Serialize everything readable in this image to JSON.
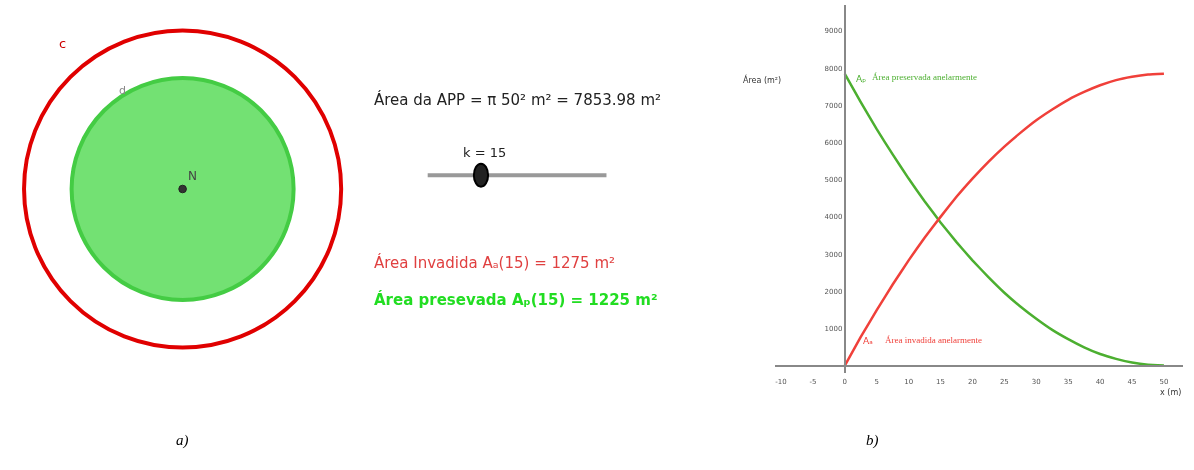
{
  "chart_data": [
    {
      "type": "other",
      "annotations": [
        "c",
        "d",
        "N",
        "Área da APP = π 50² m² = 7853.98 m²",
        "k = 15",
        "Área Invadida Aₐ(15) = 1275 m²",
        "Área presevada Aₚ(15) = 1225 m²",
        "a)"
      ]
    },
    {
      "type": "line",
      "xlabel": "x (m)",
      "ylabel": "Área (m²)",
      "x": [
        0,
        2.5,
        5,
        7.5,
        10,
        12.5,
        15,
        17.5,
        20,
        22.5,
        25,
        27.5,
        30,
        32.5,
        35,
        37.5,
        40,
        42.5,
        45,
        47.5,
        50
      ],
      "series": [
        {
          "name": "Área preservada anelarmente",
          "color": "#4caf30",
          "values": [
            7850,
            7090,
            6360,
            5680,
            5030,
            4420,
            3850,
            3320,
            2830,
            2380,
            1960,
            1590,
            1260,
            960,
            710,
            490,
            310,
            180,
            80,
            20,
            0
          ]
        },
        {
          "name": "Área invadida anelarmente",
          "color": "#f0403a",
          "values": [
            0,
            770,
            1490,
            2180,
            2830,
            3440,
            4000,
            4540,
            5030,
            5480,
            5890,
            6260,
            6600,
            6890,
            7150,
            7360,
            7540,
            7680,
            7770,
            7830,
            7850
          ]
        }
      ],
      "xlim": [
        -11,
        53
      ],
      "ylim": [
        -200,
        9700
      ],
      "xticks": [
        -10,
        -5,
        0,
        5,
        10,
        15,
        20,
        25,
        30,
        35,
        40,
        45,
        50
      ],
      "yticks": [
        1000,
        2000,
        3000,
        4000,
        5000,
        6000,
        7000,
        8000,
        9000
      ],
      "annotations": [
        {
          "text": "Aₚ",
          "x": 1.5,
          "y": 7700
        },
        {
          "text": "Aₐ",
          "x": 2.5,
          "y": 650
        },
        "b)"
      ],
      "grid": false,
      "legend": false,
      "line_style": "solid",
      "marker": "none"
    }
  ]
}
